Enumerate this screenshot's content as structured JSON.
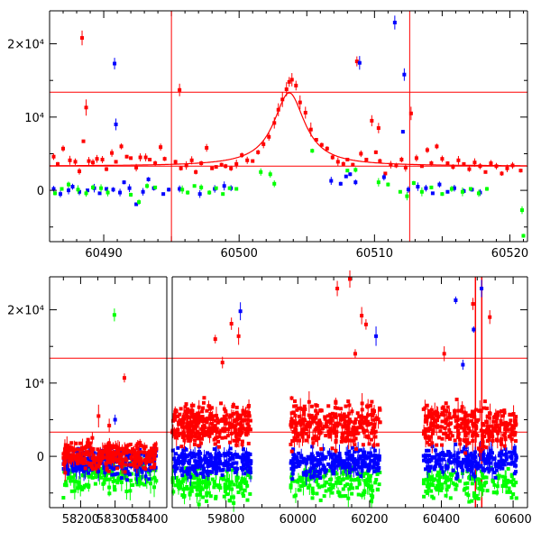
{
  "colors": {
    "red": "#ff0000",
    "blue": "#0000ff",
    "green": "#00ff00",
    "axis": "#000000"
  },
  "chart_data": [
    {
      "type": "scatter",
      "title": "",
      "xlabel": "",
      "ylabel": "",
      "xlim": [
        60486,
        60521.3
      ],
      "ylim": [
        -7000,
        24500
      ],
      "xticks": [
        60490,
        60500,
        60510,
        60520
      ],
      "xtick_labels": [
        "60490",
        "60500",
        "60510",
        "60520"
      ],
      "yticks": [
        0,
        10000,
        20000
      ],
      "ytick_labels": [
        "0",
        "10⁴",
        "2×10⁴"
      ],
      "vlines": [
        60495,
        60512.6
      ],
      "hlines": [
        3300,
        13400
      ],
      "model_curve": {
        "type": "peak",
        "center": 60503.7,
        "peak": 13300,
        "baseline": 3300,
        "width": 1.4
      },
      "series": [
        {
          "color": "red",
          "points": [
            [
              60486.3,
              4600
            ],
            [
              60486.6,
              3600
            ],
            [
              60487.0,
              5700
            ],
            [
              60487.5,
              4100
            ],
            [
              60487.9,
              3900
            ],
            [
              60488.2,
              2600
            ],
            [
              60488.5,
              6700
            ],
            [
              60488.9,
              4000
            ],
            [
              60489.2,
              3800
            ],
            [
              60489.5,
              4300
            ],
            [
              60489.9,
              4200
            ],
            [
              60490.2,
              2900
            ],
            [
              60490.6,
              5100
            ],
            [
              60490.9,
              3900
            ],
            [
              60491.3,
              6000
            ],
            [
              60491.7,
              4600
            ],
            [
              60492.0,
              4400
            ],
            [
              60492.4,
              3100
            ],
            [
              60492.7,
              4500
            ],
            [
              60493.1,
              4500
            ],
            [
              60493.4,
              4200
            ],
            [
              60493.8,
              3700
            ],
            [
              60494.2,
              5900
            ],
            [
              60494.5,
              4300
            ],
            [
              60495.3,
              3900
            ],
            [
              60495.7,
              3000
            ],
            [
              60496.1,
              3400
            ],
            [
              60496.5,
              4100
            ],
            [
              60496.8,
              2500
            ],
            [
              60497.2,
              3700
            ],
            [
              60497.6,
              5800
            ],
            [
              60498.0,
              3000
            ],
            [
              60498.3,
              3200
            ],
            [
              60498.7,
              3500
            ],
            [
              60499.0,
              3300
            ],
            [
              60499.4,
              3000
            ],
            [
              60499.8,
              3600
            ],
            [
              60500.2,
              4800
            ],
            [
              60500.6,
              4100
            ],
            [
              60501.0,
              4000
            ],
            [
              60501.4,
              5200
            ],
            [
              60501.8,
              6300
            ],
            [
              60502.2,
              7300
            ],
            [
              60502.6,
              9200
            ],
            [
              60502.9,
              11000
            ],
            [
              60503.2,
              12400
            ],
            [
              60503.5,
              13800
            ],
            [
              60503.7,
              14800
            ],
            [
              60503.9,
              15100
            ],
            [
              60504.2,
              14300
            ],
            [
              60504.5,
              12000
            ],
            [
              60504.9,
              10600
            ],
            [
              60505.3,
              8300
            ],
            [
              60505.7,
              6900
            ],
            [
              60506.1,
              6200
            ],
            [
              60506.5,
              5700
            ],
            [
              60506.9,
              4500
            ],
            [
              60507.3,
              3900
            ],
            [
              60507.7,
              3600
            ],
            [
              60508.0,
              4200
            ],
            [
              60508.4,
              3500
            ],
            [
              60508.7,
              17600
            ],
            [
              60509.0,
              5000
            ],
            [
              60509.4,
              4200
            ],
            [
              60509.8,
              9500
            ],
            [
              60510.1,
              5200
            ],
            [
              60510.4,
              4000
            ],
            [
              60510.8,
              2300
            ],
            [
              60511.2,
              3500
            ],
            [
              60511.6,
              3400
            ],
            [
              60512.0,
              4200
            ],
            [
              60512.3,
              3100
            ],
            [
              60512.7,
              10500
            ],
            [
              60513.1,
              4400
            ],
            [
              60513.5,
              3300
            ],
            [
              60513.9,
              5500
            ],
            [
              60514.2,
              3700
            ],
            [
              60514.6,
              6000
            ],
            [
              60515.0,
              4300
            ],
            [
              60515.4,
              3700
            ],
            [
              60515.8,
              3200
            ],
            [
              60516.2,
              4100
            ],
            [
              60516.6,
              3600
            ],
            [
              60517.0,
              2900
            ],
            [
              60517.4,
              3800
            ],
            [
              60517.8,
              3300
            ],
            [
              60518.2,
              2500
            ],
            [
              60518.6,
              3700
            ],
            [
              60519.0,
              3300
            ],
            [
              60519.4,
              2300
            ],
            [
              60519.8,
              3000
            ],
            [
              60520.2,
              3400
            ],
            [
              60520.8,
              2700
            ],
            [
              60488.4,
              20800
            ],
            [
              60488.7,
              11300
            ],
            [
              60495.6,
              13700
            ],
            [
              60510.3,
              8500
            ]
          ]
        },
        {
          "color": "blue",
          "points": [
            [
              60486.3,
              200
            ],
            [
              60486.8,
              -500
            ],
            [
              60487.4,
              0
            ],
            [
              60487.7,
              500
            ],
            [
              60488.2,
              -200
            ],
            [
              60488.8,
              0
            ],
            [
              60489.3,
              300
            ],
            [
              60489.7,
              -400
            ],
            [
              60490.2,
              200
            ],
            [
              60490.7,
              100
            ],
            [
              60491.2,
              -300
            ],
            [
              60491.5,
              1100
            ],
            [
              60491.9,
              300
            ],
            [
              60492.4,
              -1900
            ],
            [
              60492.9,
              -200
            ],
            [
              60493.3,
              1500
            ],
            [
              60493.7,
              300
            ],
            [
              60494.4,
              -500
            ],
            [
              60494.8,
              100
            ],
            [
              60495.6,
              200
            ],
            [
              60497.1,
              -500
            ],
            [
              60498.2,
              200
            ],
            [
              60498.9,
              600
            ],
            [
              60499.4,
              300
            ],
            [
              60506.8,
              1300
            ],
            [
              60507.5,
              900
            ],
            [
              60507.9,
              1900
            ],
            [
              60508.2,
              2200
            ],
            [
              60508.6,
              1100
            ],
            [
              60508.9,
              17400
            ],
            [
              60510.7,
              1800
            ],
            [
              60511.5,
              22900
            ],
            [
              60512.2,
              15800
            ],
            [
              60512.5,
              100
            ],
            [
              60513.2,
              500
            ],
            [
              60513.8,
              300
            ],
            [
              60514.3,
              -400
            ],
            [
              60514.8,
              800
            ],
            [
              60515.4,
              -200
            ],
            [
              60515.9,
              300
            ],
            [
              60516.6,
              -100
            ],
            [
              60517.2,
              100
            ],
            [
              60517.8,
              -300
            ],
            [
              60490.8,
              17300
            ],
            [
              60490.9,
              9000
            ],
            [
              60512.1,
              8000
            ]
          ]
        },
        {
          "color": "green",
          "points": [
            [
              60486.4,
              -400
            ],
            [
              60486.9,
              200
            ],
            [
              60487.4,
              800
            ],
            [
              60488.1,
              100
            ],
            [
              60488.7,
              -400
            ],
            [
              60489.2,
              400
            ],
            [
              60489.8,
              300
            ],
            [
              60490.3,
              -300
            ],
            [
              60492.0,
              -600
            ],
            [
              60492.6,
              -1600
            ],
            [
              60493.2,
              600
            ],
            [
              60493.8,
              400
            ],
            [
              60495.8,
              100
            ],
            [
              60496.2,
              -300
            ],
            [
              60496.7,
              600
            ],
            [
              60497.2,
              400
            ],
            [
              60497.8,
              -300
            ],
            [
              60498.3,
              300
            ],
            [
              60498.8,
              -500
            ],
            [
              60499.3,
              300
            ],
            [
              60499.8,
              200
            ],
            [
              60501.6,
              2500
            ],
            [
              60502.3,
              2200
            ],
            [
              60502.6,
              900
            ],
            [
              60505.4,
              5400
            ],
            [
              60508.0,
              2700
            ],
            [
              60508.6,
              2800
            ],
            [
              60510.3,
              1100
            ],
            [
              60511.0,
              800
            ],
            [
              60511.9,
              -200
            ],
            [
              60512.4,
              -800
            ],
            [
              60512.9,
              1000
            ],
            [
              60513.5,
              -200
            ],
            [
              60514.2,
              400
            ],
            [
              60515.0,
              -500
            ],
            [
              60515.7,
              200
            ],
            [
              60516.5,
              -200
            ],
            [
              60517.1,
              200
            ],
            [
              60517.7,
              -400
            ],
            [
              60518.3,
              200
            ],
            [
              60520.9,
              -2700
            ],
            [
              60521.0,
              -6200
            ]
          ]
        }
      ]
    },
    {
      "type": "scatter",
      "title": "",
      "xlabel": "",
      "ylabel": "",
      "xlim": [
        58110,
        60640
      ],
      "xbreak": [
        58450,
        59650
      ],
      "ylim": [
        -7000,
        24500
      ],
      "xticks": [
        58200,
        58300,
        58400,
        59800,
        60000,
        60200,
        60400,
        60600
      ],
      "xtick_labels": [
        "58200",
        "58300",
        "58400",
        "59800",
        "60000",
        "60200",
        "60400",
        "60600"
      ],
      "yticks": [
        0,
        10000,
        20000
      ],
      "ytick_labels": [
        "0",
        "10⁴",
        "2×10⁴"
      ],
      "vlines": [
        60495,
        60512.6
      ],
      "hlines": [
        3300,
        13400
      ],
      "seasons": [
        {
          "x_range": [
            58150,
            58420
          ],
          "red": [
            -2500,
            2800
          ],
          "blue": [
            -3500,
            1800
          ],
          "green": [
            -6000,
            500
          ]
        },
        {
          "x_range": [
            59650,
            59870
          ],
          "red": [
            0,
            8500
          ],
          "blue": [
            -3500,
            2000
          ],
          "green": [
            -7000,
            -500
          ]
        },
        {
          "x_range": [
            59980,
            60230
          ],
          "red": [
            0,
            8500
          ],
          "blue": [
            -3500,
            2000
          ],
          "green": [
            -7000,
            -500
          ]
        },
        {
          "x_range": [
            60350,
            60610
          ],
          "red": [
            0,
            8500
          ],
          "blue": [
            -3500,
            2000
          ],
          "green": [
            -7000,
            -500
          ]
        }
      ],
      "outliers": [
        {
          "color": "green",
          "x": 58298,
          "y": 19300
        },
        {
          "color": "red",
          "x": 58327,
          "y": 10700
        },
        {
          "color": "red",
          "x": 58252,
          "y": 5500
        },
        {
          "color": "red",
          "x": 58283,
          "y": 4200
        },
        {
          "color": "blue",
          "x": 58300,
          "y": 5000
        },
        {
          "color": "red",
          "x": 59770,
          "y": 16000
        },
        {
          "color": "red",
          "x": 59790,
          "y": 12800
        },
        {
          "color": "red",
          "x": 59815,
          "y": 18100
        },
        {
          "color": "blue",
          "x": 59840,
          "y": 19800
        },
        {
          "color": "red",
          "x": 59835,
          "y": 16400
        },
        {
          "color": "red",
          "x": 60110,
          "y": 22900
        },
        {
          "color": "red",
          "x": 60145,
          "y": 24200
        },
        {
          "color": "red",
          "x": 60178,
          "y": 19200
        },
        {
          "color": "red",
          "x": 60190,
          "y": 18000
        },
        {
          "color": "red",
          "x": 60160,
          "y": 14000
        },
        {
          "color": "blue",
          "x": 60218,
          "y": 16400
        },
        {
          "color": "red",
          "x": 60488,
          "y": 20800
        },
        {
          "color": "blue",
          "x": 60512,
          "y": 22900
        },
        {
          "color": "blue",
          "x": 60490,
          "y": 17300
        },
        {
          "color": "red",
          "x": 60535,
          "y": 19000
        },
        {
          "color": "blue",
          "x": 60440,
          "y": 21300
        },
        {
          "color": "red",
          "x": 60408,
          "y": 14000
        },
        {
          "color": "blue",
          "x": 60460,
          "y": 12500
        }
      ]
    }
  ]
}
